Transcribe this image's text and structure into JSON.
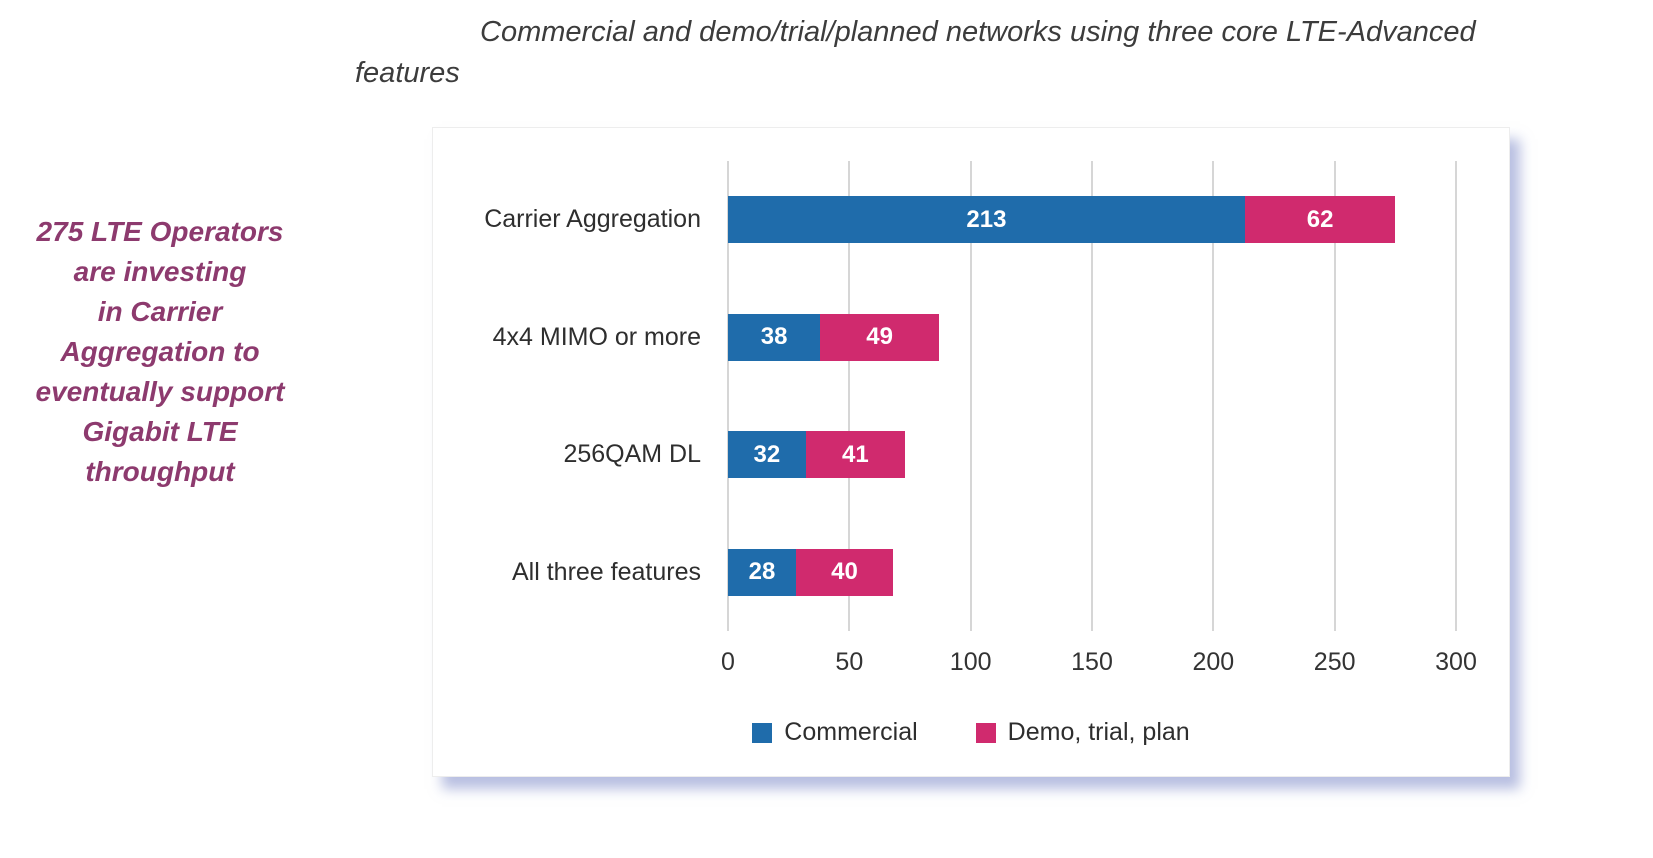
{
  "title": {
    "text": "Commercial and demo/trial/planned networks using three core LTE-Advanced\nfeatures"
  },
  "sidebar_note": {
    "text": "275 LTE Operators\nare investing\nin Carrier\nAggregation to\neventually support\nGigabit LTE\nthroughput",
    "color": "#8d3a6e"
  },
  "chart_data": {
    "type": "bar",
    "orientation": "horizontal",
    "stacked": true,
    "title": "Commercial and demo/trial/planned networks using three core LTE-Advanced features",
    "categories": [
      "Carrier Aggregation",
      "4x4 MIMO or more",
      "256QAM DL",
      "All three features"
    ],
    "series": [
      {
        "name": "Commercial",
        "color": "#1f6cab",
        "values": [
          213,
          38,
          32,
          28
        ]
      },
      {
        "name": "Demo, trial, plan",
        "color": "#d02a6e",
        "values": [
          62,
          49,
          41,
          40
        ]
      }
    ],
    "totals": [
      275,
      87,
      73,
      68
    ],
    "x_ticks": [
      0,
      50,
      100,
      150,
      200,
      250,
      300
    ],
    "xlim": [
      0,
      300
    ],
    "grid": "vertical",
    "legend_position": "bottom",
    "bar_value_labels": true,
    "gridline_color": "#d6d6d6"
  }
}
